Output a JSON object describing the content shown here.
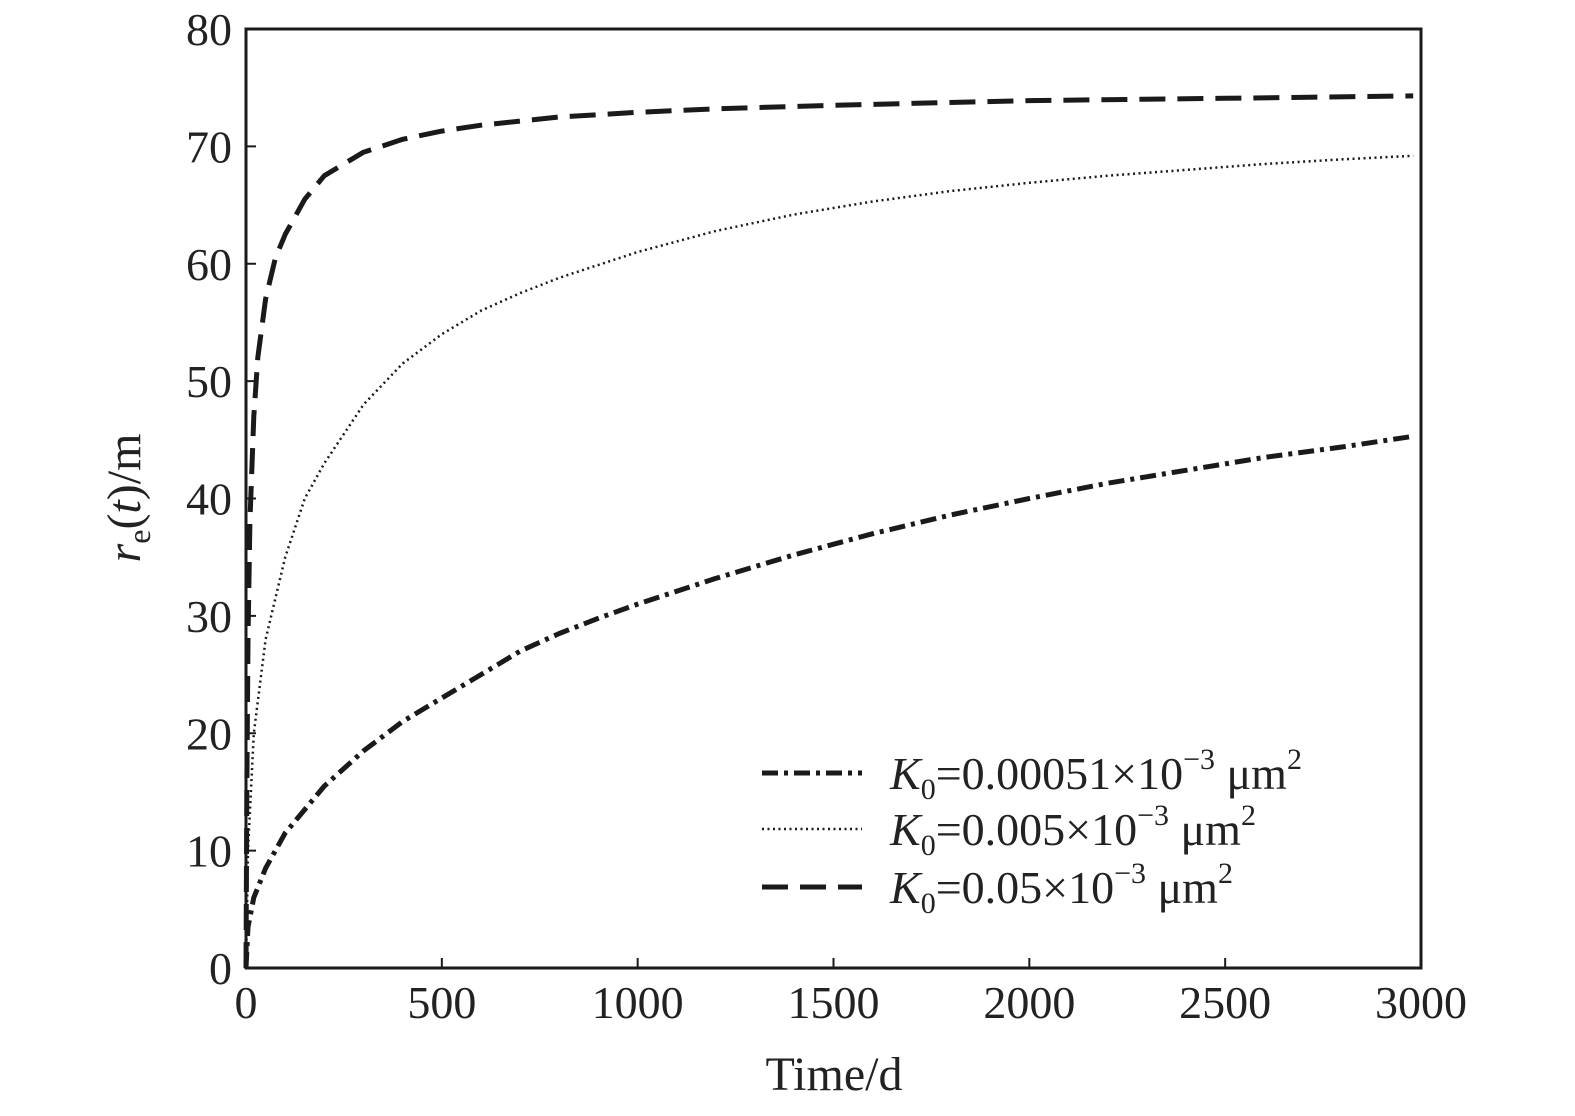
{
  "chart_data": {
    "type": "line",
    "title": "",
    "xlabel": "Time/d",
    "ylabel": {
      "r": "r",
      "sub": "e",
      "paren_open": "(",
      "t": "t",
      "paren_close": ")/m"
    },
    "xlim": [
      0,
      3000
    ],
    "ylim": [
      0,
      80
    ],
    "xticks": [
      0,
      500,
      1000,
      1500,
      2000,
      2500,
      3000
    ],
    "yticks": [
      0,
      10,
      20,
      30,
      40,
      50,
      60,
      70,
      80
    ],
    "grid": false,
    "legend_position": "bottom-right",
    "series": [
      {
        "name": "K0=0.00051×10−3 μm2",
        "legend": {
          "k": "K",
          "k_sub": "0",
          "value": "=0.00051×10",
          "exp": "−3",
          "unit": " μm",
          "unit_sup": "2"
        },
        "style": "dashdot",
        "color": "#1a1a1a",
        "x": [
          0,
          5,
          20,
          50,
          100,
          150,
          200,
          300,
          400,
          500,
          600,
          700,
          800,
          900,
          1000,
          1200,
          1400,
          1600,
          1800,
          2000,
          2200,
          2400,
          2600,
          2800,
          2980
        ],
        "y": [
          0,
          3.5,
          6,
          8.5,
          11.5,
          13.5,
          15.5,
          18.5,
          21,
          23,
          25,
          27,
          28.5,
          29.8,
          31,
          33.2,
          35.2,
          37,
          38.6,
          40,
          41.3,
          42.4,
          43.5,
          44.4,
          45.3
        ]
      },
      {
        "name": "K0=0.005×10−3 μm2",
        "legend": {
          "k": "K",
          "k_sub": "0",
          "value": "=0.005×10",
          "exp": "−3",
          "unit": " μm",
          "unit_sup": "2"
        },
        "style": "dotted",
        "color": "#1a1a1a",
        "x": [
          0,
          5,
          20,
          50,
          100,
          150,
          200,
          300,
          400,
          500,
          600,
          700,
          800,
          1000,
          1200,
          1400,
          1600,
          1800,
          2000,
          2200,
          2400,
          2600,
          2800,
          2980
        ],
        "y": [
          0,
          10,
          20,
          28,
          35,
          40,
          43,
          48,
          51.5,
          54,
          56,
          57.5,
          58.8,
          61,
          62.8,
          64.2,
          65.3,
          66.2,
          66.9,
          67.5,
          68,
          68.5,
          68.9,
          69.2
        ]
      },
      {
        "name": "K0=0.05×10−3 μm2",
        "legend": {
          "k": "K",
          "k_sub": "0",
          "value": "=0.05×10",
          "exp": "−3",
          "unit": " μm",
          "unit_sup": "2"
        },
        "style": "dashed",
        "color": "#1a1a1a",
        "x": [
          0,
          2,
          5,
          10,
          20,
          30,
          50,
          75,
          100,
          150,
          200,
          300,
          400,
          500,
          600,
          800,
          1000,
          1200,
          1500,
          2000,
          2500,
          2980
        ],
        "y": [
          0,
          15,
          28,
          38,
          47,
          52,
          57,
          60.5,
          62.5,
          65.5,
          67.5,
          69.5,
          70.6,
          71.3,
          71.8,
          72.5,
          72.9,
          73.2,
          73.5,
          73.9,
          74.1,
          74.3
        ]
      }
    ]
  }
}
